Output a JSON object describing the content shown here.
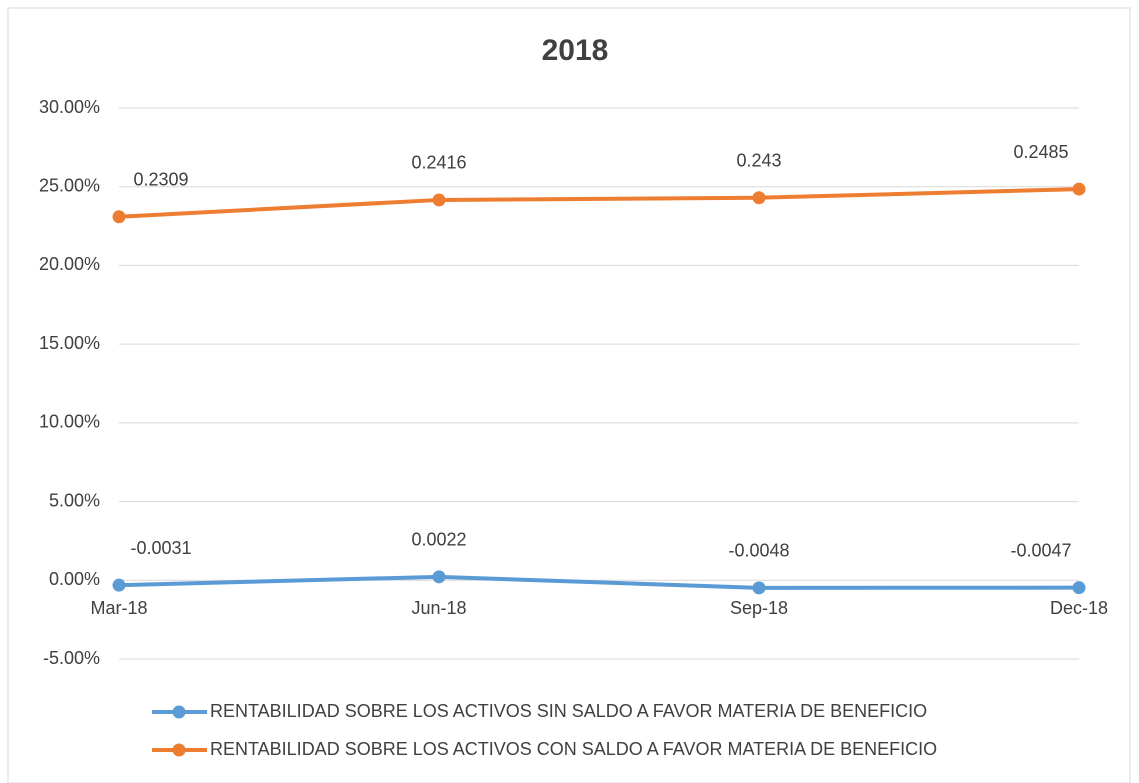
{
  "chart_data": {
    "type": "line",
    "title": "2018",
    "categories": [
      "Mar-18",
      "Jun-18",
      "Sep-18",
      "Dec-18"
    ],
    "series": [
      {
        "name": "RENTABILIDAD SOBRE LOS ACTIVOS SIN SALDO A FAVOR MATERIA DE BENEFICIO",
        "color": "#5b9bd5",
        "values": [
          -0.0031,
          0.0022,
          -0.0048,
          -0.0047
        ]
      },
      {
        "name": "RENTABILIDAD SOBRE LOS ACTIVOS CON SALDO A FAVOR MATERIA DE BENEFICIO",
        "color": "#ed7d31",
        "values": [
          0.2309,
          0.2416,
          0.243,
          0.2485
        ]
      }
    ],
    "ylim": [
      -0.05,
      0.3
    ],
    "yticks": [
      {
        "value": -0.05,
        "label": "-5.00%"
      },
      {
        "value": 0,
        "label": "0.00%"
      },
      {
        "value": 0.05,
        "label": "5.00%"
      },
      {
        "value": 0.1,
        "label": "10.00%"
      },
      {
        "value": 0.15,
        "label": "15.00%"
      },
      {
        "value": 0.2,
        "label": "20.00%"
      },
      {
        "value": 0.25,
        "label": "25.00%"
      },
      {
        "value": 0.3,
        "label": "30.00%"
      }
    ],
    "grid": true,
    "legend": "bottom"
  }
}
